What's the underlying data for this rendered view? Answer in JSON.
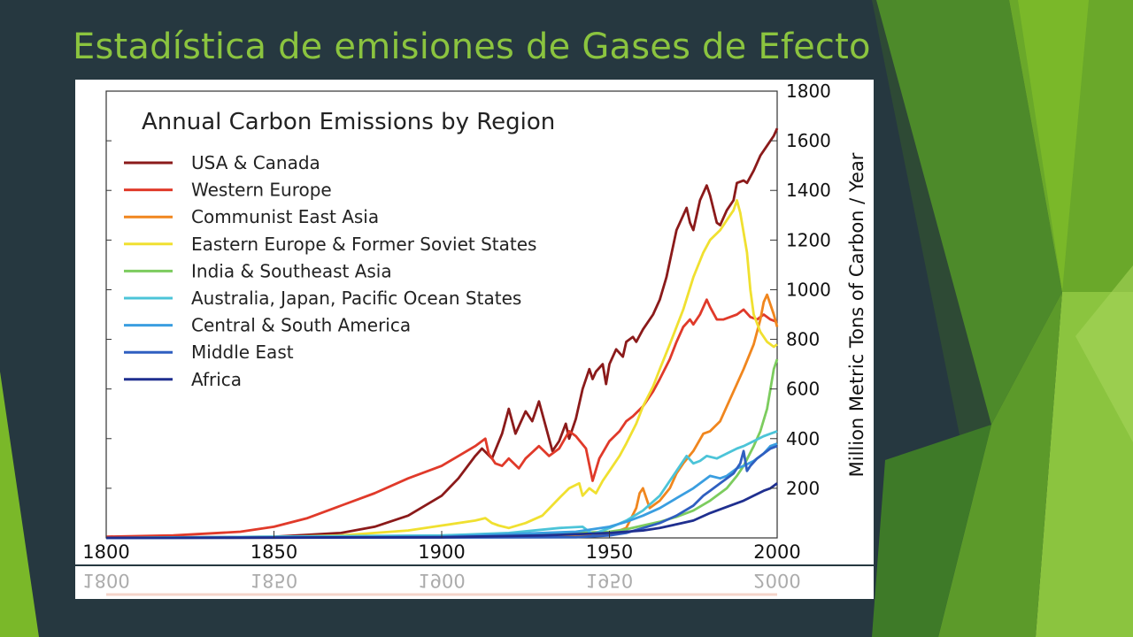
{
  "slide": {
    "title": "Estadística de emisiones de Gases de Efecto"
  },
  "colors": {
    "background": "#263840",
    "title": "#8bc43f",
    "accent_green": "#7ab829"
  },
  "chart_data": {
    "type": "line",
    "title": "Annual Carbon Emissions by Region",
    "ylabel": "Million Metric Tons of Carbon / Year",
    "xlabel": "",
    "xlim": [
      1800,
      2000
    ],
    "ylim": [
      0,
      1800
    ],
    "xticks": [
      "1800",
      "1850",
      "1900",
      "1950",
      "2000"
    ],
    "yticks": [
      "200",
      "400",
      "600",
      "800",
      "1000",
      "1200",
      "1400",
      "1600",
      "1800"
    ],
    "legend_position": "top-left",
    "grid": false,
    "series": [
      {
        "name": "USA & Canada",
        "color": "#8b1a1a",
        "points": [
          [
            1800,
            0
          ],
          [
            1850,
            5
          ],
          [
            1870,
            20
          ],
          [
            1880,
            45
          ],
          [
            1890,
            90
          ],
          [
            1900,
            170
          ],
          [
            1905,
            240
          ],
          [
            1910,
            330
          ],
          [
            1912,
            360
          ],
          [
            1915,
            320
          ],
          [
            1918,
            420
          ],
          [
            1920,
            520
          ],
          [
            1922,
            420
          ],
          [
            1925,
            510
          ],
          [
            1927,
            470
          ],
          [
            1929,
            550
          ],
          [
            1931,
            450
          ],
          [
            1933,
            350
          ],
          [
            1935,
            390
          ],
          [
            1937,
            460
          ],
          [
            1938,
            400
          ],
          [
            1940,
            480
          ],
          [
            1942,
            600
          ],
          [
            1944,
            680
          ],
          [
            1945,
            640
          ],
          [
            1946,
            670
          ],
          [
            1948,
            700
          ],
          [
            1949,
            620
          ],
          [
            1950,
            700
          ],
          [
            1952,
            760
          ],
          [
            1954,
            730
          ],
          [
            1955,
            790
          ],
          [
            1957,
            810
          ],
          [
            1958,
            790
          ],
          [
            1960,
            840
          ],
          [
            1963,
            900
          ],
          [
            1965,
            960
          ],
          [
            1967,
            1050
          ],
          [
            1970,
            1240
          ],
          [
            1972,
            1300
          ],
          [
            1973,
            1330
          ],
          [
            1974,
            1270
          ],
          [
            1975,
            1240
          ],
          [
            1977,
            1360
          ],
          [
            1979,
            1420
          ],
          [
            1980,
            1380
          ],
          [
            1982,
            1270
          ],
          [
            1983,
            1260
          ],
          [
            1985,
            1320
          ],
          [
            1987,
            1360
          ],
          [
            1988,
            1430
          ],
          [
            1990,
            1440
          ],
          [
            1991,
            1430
          ],
          [
            1993,
            1480
          ],
          [
            1995,
            1540
          ],
          [
            1997,
            1580
          ],
          [
            1999,
            1620
          ],
          [
            2000,
            1650
          ]
        ]
      },
      {
        "name": "Western Europe",
        "color": "#e03a2a",
        "points": [
          [
            1800,
            5
          ],
          [
            1820,
            10
          ],
          [
            1840,
            25
          ],
          [
            1850,
            45
          ],
          [
            1860,
            80
          ],
          [
            1870,
            130
          ],
          [
            1880,
            180
          ],
          [
            1890,
            240
          ],
          [
            1900,
            290
          ],
          [
            1905,
            330
          ],
          [
            1910,
            370
          ],
          [
            1913,
            400
          ],
          [
            1914,
            340
          ],
          [
            1916,
            300
          ],
          [
            1918,
            290
          ],
          [
            1920,
            320
          ],
          [
            1923,
            280
          ],
          [
            1925,
            320
          ],
          [
            1929,
            370
          ],
          [
            1932,
            330
          ],
          [
            1935,
            360
          ],
          [
            1938,
            430
          ],
          [
            1940,
            410
          ],
          [
            1943,
            360
          ],
          [
            1945,
            230
          ],
          [
            1947,
            320
          ],
          [
            1950,
            390
          ],
          [
            1953,
            430
          ],
          [
            1955,
            470
          ],
          [
            1957,
            490
          ],
          [
            1960,
            530
          ],
          [
            1963,
            590
          ],
          [
            1965,
            640
          ],
          [
            1968,
            720
          ],
          [
            1970,
            790
          ],
          [
            1972,
            850
          ],
          [
            1974,
            880
          ],
          [
            1975,
            860
          ],
          [
            1977,
            900
          ],
          [
            1979,
            960
          ],
          [
            1980,
            930
          ],
          [
            1982,
            880
          ],
          [
            1984,
            880
          ],
          [
            1986,
            890
          ],
          [
            1988,
            900
          ],
          [
            1990,
            920
          ],
          [
            1992,
            890
          ],
          [
            1994,
            880
          ],
          [
            1996,
            900
          ],
          [
            1998,
            880
          ],
          [
            2000,
            870
          ]
        ]
      },
      {
        "name": "Communist East Asia",
        "color": "#f0861e",
        "points": [
          [
            1800,
            0
          ],
          [
            1900,
            2
          ],
          [
            1940,
            10
          ],
          [
            1950,
            15
          ],
          [
            1955,
            40
          ],
          [
            1958,
            120
          ],
          [
            1959,
            180
          ],
          [
            1960,
            200
          ],
          [
            1962,
            120
          ],
          [
            1965,
            150
          ],
          [
            1968,
            200
          ],
          [
            1970,
            260
          ],
          [
            1972,
            300
          ],
          [
            1975,
            350
          ],
          [
            1978,
            420
          ],
          [
            1980,
            430
          ],
          [
            1983,
            470
          ],
          [
            1985,
            530
          ],
          [
            1988,
            620
          ],
          [
            1990,
            680
          ],
          [
            1993,
            780
          ],
          [
            1995,
            880
          ],
          [
            1996,
            950
          ],
          [
            1997,
            980
          ],
          [
            1999,
            900
          ],
          [
            2000,
            850
          ]
        ]
      },
      {
        "name": "Eastern Europe & Former Soviet States",
        "color": "#f0e030",
        "points": [
          [
            1800,
            0
          ],
          [
            1850,
            3
          ],
          [
            1870,
            10
          ],
          [
            1880,
            20
          ],
          [
            1890,
            30
          ],
          [
            1900,
            50
          ],
          [
            1910,
            70
          ],
          [
            1913,
            80
          ],
          [
            1915,
            60
          ],
          [
            1917,
            50
          ],
          [
            1920,
            40
          ],
          [
            1925,
            60
          ],
          [
            1930,
            90
          ],
          [
            1935,
            160
          ],
          [
            1938,
            200
          ],
          [
            1941,
            220
          ],
          [
            1942,
            170
          ],
          [
            1944,
            200
          ],
          [
            1946,
            180
          ],
          [
            1948,
            230
          ],
          [
            1950,
            270
          ],
          [
            1953,
            330
          ],
          [
            1955,
            380
          ],
          [
            1958,
            460
          ],
          [
            1960,
            530
          ],
          [
            1963,
            610
          ],
          [
            1965,
            680
          ],
          [
            1968,
            780
          ],
          [
            1970,
            850
          ],
          [
            1972,
            920
          ],
          [
            1975,
            1050
          ],
          [
            1978,
            1150
          ],
          [
            1980,
            1200
          ],
          [
            1983,
            1240
          ],
          [
            1985,
            1280
          ],
          [
            1987,
            1320
          ],
          [
            1988,
            1360
          ],
          [
            1989,
            1310
          ],
          [
            1990,
            1230
          ],
          [
            1991,
            1150
          ],
          [
            1992,
            1000
          ],
          [
            1993,
            900
          ],
          [
            1995,
            830
          ],
          [
            1997,
            790
          ],
          [
            1999,
            770
          ],
          [
            2000,
            780
          ]
        ]
      },
      {
        "name": "India & Southeast Asia",
        "color": "#7ccc5e",
        "points": [
          [
            1800,
            0
          ],
          [
            1900,
            5
          ],
          [
            1930,
            15
          ],
          [
            1950,
            25
          ],
          [
            1955,
            35
          ],
          [
            1960,
            50
          ],
          [
            1965,
            65
          ],
          [
            1970,
            85
          ],
          [
            1975,
            110
          ],
          [
            1980,
            150
          ],
          [
            1985,
            200
          ],
          [
            1988,
            250
          ],
          [
            1990,
            290
          ],
          [
            1993,
            370
          ],
          [
            1995,
            430
          ],
          [
            1997,
            520
          ],
          [
            1998,
            600
          ],
          [
            1999,
            680
          ],
          [
            2000,
            720
          ]
        ]
      },
      {
        "name": "Australia, Japan, Pacific Ocean States",
        "color": "#4cc4d8",
        "points": [
          [
            1800,
            0
          ],
          [
            1900,
            10
          ],
          [
            1920,
            20
          ],
          [
            1935,
            40
          ],
          [
            1942,
            45
          ],
          [
            1945,
            15
          ],
          [
            1948,
            30
          ],
          [
            1950,
            40
          ],
          [
            1955,
            70
          ],
          [
            1960,
            110
          ],
          [
            1965,
            170
          ],
          [
            1968,
            230
          ],
          [
            1970,
            270
          ],
          [
            1972,
            310
          ],
          [
            1973,
            330
          ],
          [
            1975,
            300
          ],
          [
            1977,
            310
          ],
          [
            1979,
            330
          ],
          [
            1982,
            320
          ],
          [
            1985,
            340
          ],
          [
            1988,
            360
          ],
          [
            1990,
            370
          ],
          [
            1993,
            390
          ],
          [
            1996,
            410
          ],
          [
            1998,
            420
          ],
          [
            2000,
            430
          ]
        ]
      },
      {
        "name": "Central & South America",
        "color": "#3a9ee0",
        "points": [
          [
            1800,
            0
          ],
          [
            1900,
            5
          ],
          [
            1920,
            15
          ],
          [
            1940,
            25
          ],
          [
            1950,
            45
          ],
          [
            1955,
            65
          ],
          [
            1960,
            90
          ],
          [
            1965,
            120
          ],
          [
            1970,
            160
          ],
          [
            1975,
            200
          ],
          [
            1980,
            250
          ],
          [
            1983,
            240
          ],
          [
            1985,
            250
          ],
          [
            1988,
            280
          ],
          [
            1990,
            290
          ],
          [
            1993,
            310
          ],
          [
            1996,
            340
          ],
          [
            1998,
            370
          ],
          [
            2000,
            380
          ]
        ]
      },
      {
        "name": "Middle East",
        "color": "#2f5fc0",
        "points": [
          [
            1800,
            0
          ],
          [
            1940,
            3
          ],
          [
            1950,
            10
          ],
          [
            1955,
            20
          ],
          [
            1960,
            40
          ],
          [
            1965,
            60
          ],
          [
            1970,
            90
          ],
          [
            1975,
            130
          ],
          [
            1978,
            170
          ],
          [
            1980,
            190
          ],
          [
            1983,
            220
          ],
          [
            1985,
            240
          ],
          [
            1987,
            260
          ],
          [
            1989,
            300
          ],
          [
            1990,
            350
          ],
          [
            1991,
            270
          ],
          [
            1992,
            290
          ],
          [
            1994,
            320
          ],
          [
            1996,
            340
          ],
          [
            1998,
            360
          ],
          [
            2000,
            370
          ]
        ]
      },
      {
        "name": "Africa",
        "color": "#1f2f8f",
        "points": [
          [
            1800,
            0
          ],
          [
            1900,
            3
          ],
          [
            1930,
            10
          ],
          [
            1950,
            20
          ],
          [
            1955,
            25
          ],
          [
            1960,
            30
          ],
          [
            1965,
            40
          ],
          [
            1970,
            55
          ],
          [
            1975,
            70
          ],
          [
            1980,
            100
          ],
          [
            1985,
            125
          ],
          [
            1990,
            150
          ],
          [
            1993,
            170
          ],
          [
            1996,
            190
          ],
          [
            1998,
            200
          ],
          [
            2000,
            220
          ]
        ]
      }
    ]
  }
}
